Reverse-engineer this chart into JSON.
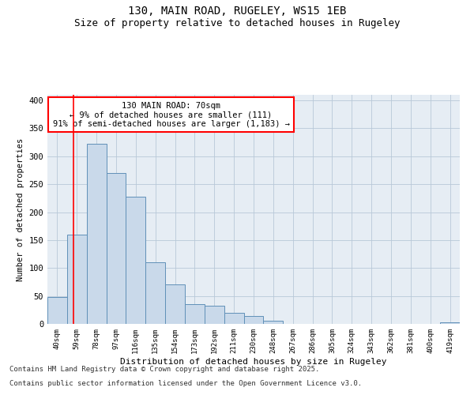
{
  "title1": "130, MAIN ROAD, RUGELEY, WS15 1EB",
  "title2": "Size of property relative to detached houses in Rugeley",
  "xlabel": "Distribution of detached houses by size in Rugeley",
  "ylabel": "Number of detached properties",
  "categories": [
    "40sqm",
    "59sqm",
    "78sqm",
    "97sqm",
    "116sqm",
    "135sqm",
    "154sqm",
    "173sqm",
    "192sqm",
    "211sqm",
    "230sqm",
    "248sqm",
    "267sqm",
    "286sqm",
    "305sqm",
    "324sqm",
    "343sqm",
    "362sqm",
    "381sqm",
    "400sqm",
    "419sqm"
  ],
  "values": [
    48,
    160,
    322,
    270,
    228,
    110,
    70,
    35,
    32,
    20,
    14,
    5,
    0,
    0,
    0,
    0,
    0,
    0,
    0,
    0,
    3
  ],
  "bar_color": "#c9d9ea",
  "bar_edge_color": "#6090b8",
  "vline_x": 0.82,
  "vline_color": "red",
  "annotation_text": "130 MAIN ROAD: 70sqm\n← 9% of detached houses are smaller (111)\n91% of semi-detached houses are larger (1,183) →",
  "ylim": [
    0,
    410
  ],
  "yticks": [
    0,
    50,
    100,
    150,
    200,
    250,
    300,
    350,
    400
  ],
  "grid_color": "#b8c8d8",
  "bg_color": "#e6edf4",
  "footer1": "Contains HM Land Registry data © Crown copyright and database right 2025.",
  "footer2": "Contains public sector information licensed under the Open Government Licence v3.0.",
  "ann_fontsize": 7.5,
  "xlabel_fontsize": 8,
  "ylabel_fontsize": 7.5,
  "xtick_fontsize": 6.5,
  "ytick_fontsize": 7.5,
  "title1_fontsize": 10,
  "title2_fontsize": 9,
  "footer_fontsize": 6.5
}
